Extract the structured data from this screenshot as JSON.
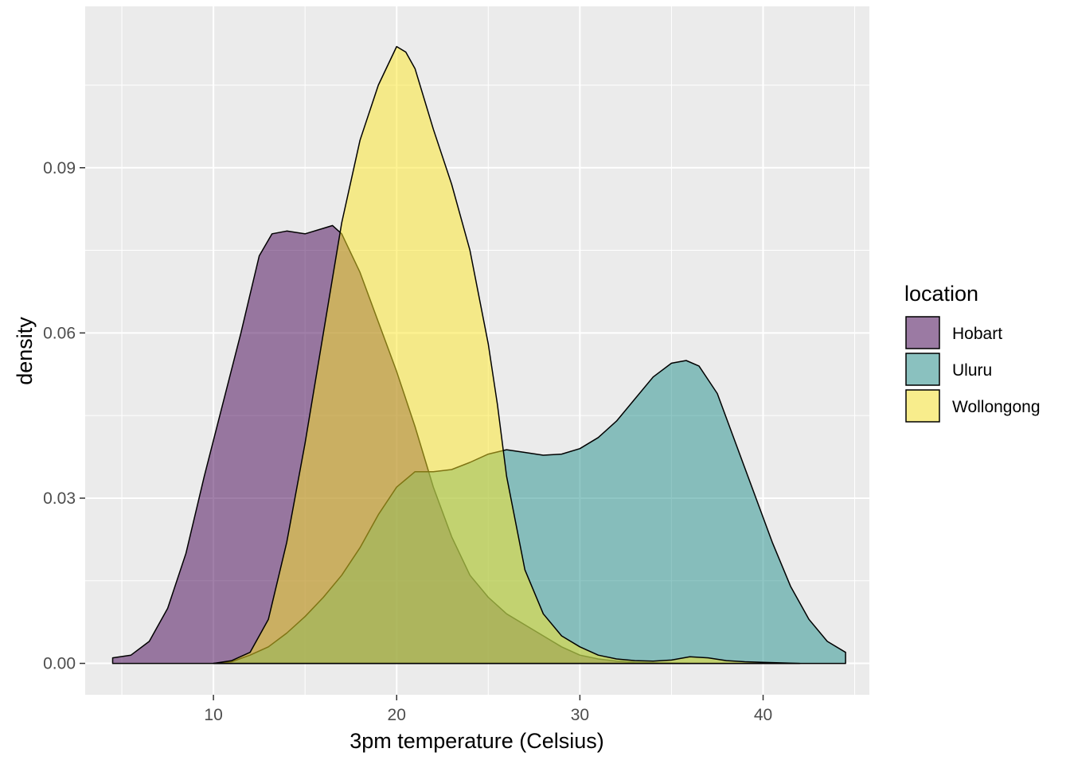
{
  "chart_data": {
    "type": "area",
    "subtype": "density",
    "title": "",
    "xlabel": "3pm temperature (Celsius)",
    "ylabel": "density",
    "xlim": [
      3.0,
      45.8
    ],
    "ylim": [
      -0.0057,
      0.1193
    ],
    "x_ticks": [
      10,
      20,
      30,
      40
    ],
    "y_ticks": [
      0.0,
      0.03,
      0.06,
      0.09
    ],
    "x_tick_labels": [
      "10",
      "20",
      "30",
      "40"
    ],
    "y_tick_labels": [
      "0.00",
      "0.03",
      "0.06",
      "0.09"
    ],
    "grid": true,
    "legend": {
      "title": "location",
      "placement": "right",
      "entries": [
        "Hobart",
        "Uluru",
        "Wollongong"
      ]
    },
    "series": [
      {
        "name": "Hobart",
        "color": "#440154",
        "points": [
          [
            4.5,
            0.001
          ],
          [
            5.5,
            0.0015
          ],
          [
            6.5,
            0.004
          ],
          [
            7.5,
            0.01
          ],
          [
            8.5,
            0.02
          ],
          [
            9.5,
            0.034
          ],
          [
            10.5,
            0.047
          ],
          [
            11.5,
            0.06
          ],
          [
            12.5,
            0.074
          ],
          [
            13.2,
            0.078
          ],
          [
            14.0,
            0.0785
          ],
          [
            15.0,
            0.078
          ],
          [
            16.0,
            0.079
          ],
          [
            16.5,
            0.0795
          ],
          [
            17.0,
            0.078
          ],
          [
            18.0,
            0.071
          ],
          [
            19.0,
            0.062
          ],
          [
            20.0,
            0.053
          ],
          [
            21.0,
            0.043
          ],
          [
            22.0,
            0.032
          ],
          [
            23.0,
            0.023
          ],
          [
            24.0,
            0.016
          ],
          [
            25.0,
            0.012
          ],
          [
            26.0,
            0.009
          ],
          [
            27.0,
            0.007
          ],
          [
            28.0,
            0.005
          ],
          [
            29.0,
            0.003
          ],
          [
            30.0,
            0.0015
          ],
          [
            31.0,
            0.0008
          ],
          [
            32.0,
            0.0004
          ],
          [
            33.0,
            0.0002
          ],
          [
            34.0,
            0.0001
          ],
          [
            36.0,
            0.0
          ]
        ]
      },
      {
        "name": "Uluru",
        "color": "#21908C",
        "points": [
          [
            10.0,
            0.0
          ],
          [
            11.0,
            0.0003
          ],
          [
            12.0,
            0.0015
          ],
          [
            13.0,
            0.003
          ],
          [
            14.0,
            0.0055
          ],
          [
            15.0,
            0.0085
          ],
          [
            16.0,
            0.012
          ],
          [
            17.0,
            0.016
          ],
          [
            18.0,
            0.021
          ],
          [
            19.0,
            0.027
          ],
          [
            20.0,
            0.032
          ],
          [
            21.0,
            0.0348
          ],
          [
            22.0,
            0.0348
          ],
          [
            23.0,
            0.0352
          ],
          [
            24.0,
            0.0365
          ],
          [
            25.0,
            0.038
          ],
          [
            26.0,
            0.0388
          ],
          [
            27.0,
            0.0383
          ],
          [
            28.0,
            0.0378
          ],
          [
            29.0,
            0.038
          ],
          [
            30.0,
            0.039
          ],
          [
            31.0,
            0.041
          ],
          [
            32.0,
            0.044
          ],
          [
            33.0,
            0.048
          ],
          [
            34.0,
            0.052
          ],
          [
            35.0,
            0.0545
          ],
          [
            35.8,
            0.055
          ],
          [
            36.5,
            0.054
          ],
          [
            37.5,
            0.049
          ],
          [
            38.5,
            0.04
          ],
          [
            39.5,
            0.031
          ],
          [
            40.5,
            0.022
          ],
          [
            41.5,
            0.014
          ],
          [
            42.5,
            0.008
          ],
          [
            43.5,
            0.004
          ],
          [
            44.5,
            0.002
          ]
        ]
      },
      {
        "name": "Wollongong",
        "color": "#FDE725",
        "points": [
          [
            10.0,
            0.0
          ],
          [
            11.0,
            0.0005
          ],
          [
            12.0,
            0.002
          ],
          [
            13.0,
            0.008
          ],
          [
            14.0,
            0.022
          ],
          [
            15.0,
            0.04
          ],
          [
            16.0,
            0.06
          ],
          [
            17.0,
            0.08
          ],
          [
            18.0,
            0.095
          ],
          [
            19.0,
            0.105
          ],
          [
            20.0,
            0.112
          ],
          [
            20.5,
            0.111
          ],
          [
            21.0,
            0.108
          ],
          [
            22.0,
            0.097
          ],
          [
            23.0,
            0.087
          ],
          [
            24.0,
            0.075
          ],
          [
            25.0,
            0.058
          ],
          [
            25.5,
            0.047
          ],
          [
            26.0,
            0.034
          ],
          [
            27.0,
            0.017
          ],
          [
            28.0,
            0.009
          ],
          [
            29.0,
            0.005
          ],
          [
            30.0,
            0.003
          ],
          [
            31.0,
            0.0015
          ],
          [
            32.0,
            0.0008
          ],
          [
            33.0,
            0.0005
          ],
          [
            34.0,
            0.0004
          ],
          [
            35.0,
            0.0006
          ],
          [
            36.0,
            0.0012
          ],
          [
            37.0,
            0.001
          ],
          [
            38.0,
            0.0005
          ],
          [
            39.0,
            0.0003
          ],
          [
            40.0,
            0.0002
          ],
          [
            42.0,
            0.0
          ]
        ]
      }
    ]
  }
}
